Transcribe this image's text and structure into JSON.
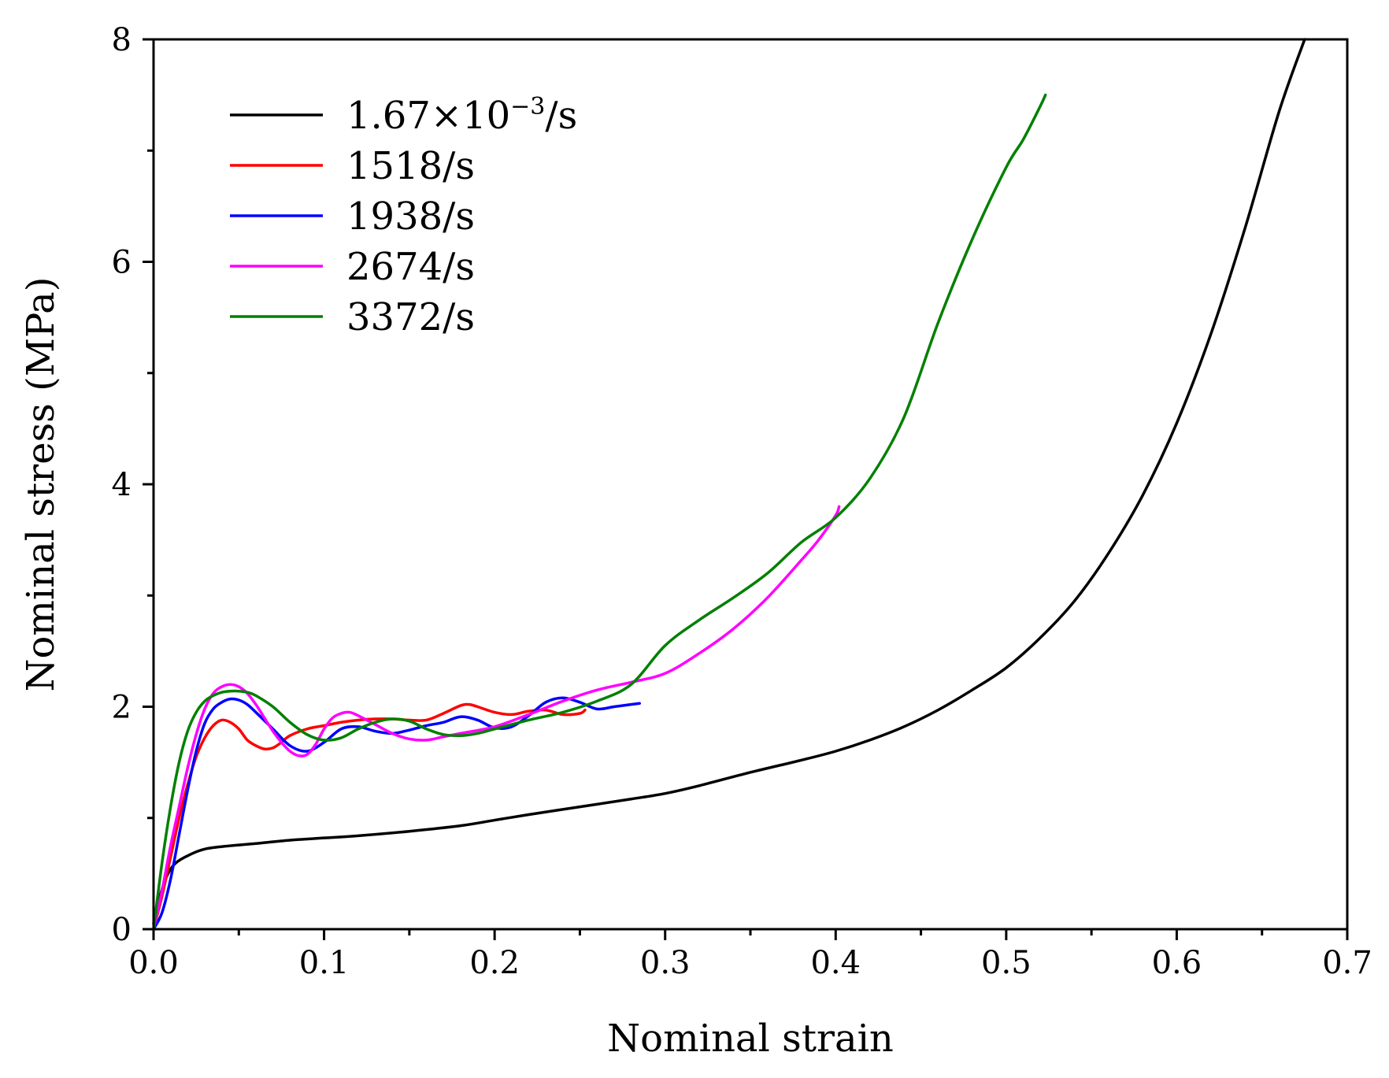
{
  "chart_data": {
    "type": "line",
    "title": "",
    "xlabel": "Nominal strain",
    "ylabel": "Nominal stress (MPa)",
    "xlim": [
      0.0,
      0.7
    ],
    "ylim": [
      0,
      8
    ],
    "grid": false,
    "legend_position": "top-left",
    "x_ticks": [
      0.0,
      0.1,
      0.2,
      0.3,
      0.4,
      0.5,
      0.6,
      0.7
    ],
    "x_tick_labels": [
      "0.0",
      "0.1",
      "0.2",
      "0.3",
      "0.4",
      "0.5",
      "0.6",
      "0.7"
    ],
    "y_ticks": [
      0,
      2,
      4,
      6,
      8
    ],
    "y_tick_labels": [
      "0",
      "2",
      "4",
      "6",
      "8"
    ],
    "series": [
      {
        "name": "1.67×10⁻³/s",
        "legend_base": "1.67×10",
        "legend_sup": "−3",
        "legend_tail": "/s",
        "color": "#000000",
        "x": [
          0.0,
          0.003,
          0.007,
          0.012,
          0.02,
          0.03,
          0.045,
          0.06,
          0.08,
          0.1,
          0.12,
          0.15,
          0.18,
          0.2,
          0.22,
          0.25,
          0.28,
          0.3,
          0.32,
          0.35,
          0.38,
          0.4,
          0.42,
          0.44,
          0.46,
          0.48,
          0.5,
          0.52,
          0.54,
          0.56,
          0.58,
          0.6,
          0.62,
          0.64,
          0.66,
          0.675
        ],
        "y": [
          0.05,
          0.25,
          0.45,
          0.58,
          0.66,
          0.72,
          0.75,
          0.77,
          0.8,
          0.82,
          0.84,
          0.88,
          0.93,
          0.98,
          1.03,
          1.1,
          1.17,
          1.22,
          1.29,
          1.41,
          1.52,
          1.6,
          1.7,
          1.82,
          1.97,
          2.15,
          2.35,
          2.62,
          2.95,
          3.38,
          3.9,
          4.55,
          5.35,
          6.3,
          7.35,
          8.0
        ]
      },
      {
        "name": "1518/s",
        "color": "#ff0000",
        "x": [
          0.0,
          0.005,
          0.01,
          0.015,
          0.02,
          0.025,
          0.03,
          0.035,
          0.04,
          0.045,
          0.05,
          0.055,
          0.06,
          0.065,
          0.07,
          0.075,
          0.08,
          0.09,
          0.1,
          0.11,
          0.12,
          0.13,
          0.14,
          0.15,
          0.16,
          0.17,
          0.18,
          0.185,
          0.19,
          0.2,
          0.21,
          0.22,
          0.23,
          0.24,
          0.25,
          0.253
        ],
        "y": [
          0.0,
          0.3,
          0.65,
          1.0,
          1.3,
          1.55,
          1.72,
          1.83,
          1.88,
          1.86,
          1.8,
          1.7,
          1.65,
          1.62,
          1.63,
          1.68,
          1.74,
          1.8,
          1.83,
          1.86,
          1.88,
          1.89,
          1.89,
          1.88,
          1.88,
          1.94,
          2.01,
          2.02,
          2.0,
          1.95,
          1.93,
          1.96,
          1.97,
          1.93,
          1.94,
          1.97
        ]
      },
      {
        "name": "1938/s",
        "color": "#0000ff",
        "x": [
          0.0,
          0.005,
          0.01,
          0.015,
          0.02,
          0.025,
          0.03,
          0.035,
          0.04,
          0.045,
          0.05,
          0.055,
          0.06,
          0.07,
          0.08,
          0.09,
          0.1,
          0.11,
          0.12,
          0.13,
          0.14,
          0.15,
          0.16,
          0.17,
          0.18,
          0.19,
          0.2,
          0.21,
          0.22,
          0.23,
          0.24,
          0.25,
          0.26,
          0.27,
          0.28,
          0.285
        ],
        "y": [
          0.0,
          0.15,
          0.45,
          0.85,
          1.25,
          1.6,
          1.85,
          1.98,
          2.04,
          2.07,
          2.06,
          2.02,
          1.95,
          1.8,
          1.65,
          1.6,
          1.68,
          1.8,
          1.82,
          1.78,
          1.76,
          1.79,
          1.83,
          1.86,
          1.91,
          1.88,
          1.81,
          1.82,
          1.92,
          2.04,
          2.08,
          2.04,
          1.98,
          2.0,
          2.02,
          2.03
        ]
      },
      {
        "name": "2674/s",
        "color": "#ff00ff",
        "x": [
          0.0,
          0.005,
          0.01,
          0.015,
          0.02,
          0.025,
          0.03,
          0.035,
          0.04,
          0.045,
          0.05,
          0.055,
          0.06,
          0.065,
          0.07,
          0.075,
          0.08,
          0.085,
          0.09,
          0.095,
          0.1,
          0.105,
          0.11,
          0.115,
          0.12,
          0.13,
          0.14,
          0.15,
          0.16,
          0.17,
          0.18,
          0.2,
          0.22,
          0.24,
          0.26,
          0.28,
          0.3,
          0.32,
          0.34,
          0.36,
          0.38,
          0.39,
          0.4,
          0.402
        ],
        "y": [
          0.0,
          0.35,
          0.75,
          1.1,
          1.45,
          1.75,
          1.98,
          2.12,
          2.18,
          2.2,
          2.18,
          2.12,
          2.02,
          1.9,
          1.78,
          1.68,
          1.6,
          1.56,
          1.57,
          1.66,
          1.8,
          1.9,
          1.94,
          1.95,
          1.92,
          1.84,
          1.76,
          1.71,
          1.7,
          1.73,
          1.76,
          1.82,
          1.93,
          2.05,
          2.15,
          2.22,
          2.3,
          2.48,
          2.7,
          2.98,
          3.32,
          3.5,
          3.72,
          3.8
        ]
      },
      {
        "name": "3372/s",
        "color": "#008000",
        "x": [
          0.0,
          0.005,
          0.01,
          0.015,
          0.02,
          0.025,
          0.03,
          0.035,
          0.04,
          0.045,
          0.05,
          0.055,
          0.06,
          0.07,
          0.08,
          0.09,
          0.1,
          0.11,
          0.12,
          0.13,
          0.14,
          0.15,
          0.16,
          0.17,
          0.18,
          0.19,
          0.2,
          0.22,
          0.24,
          0.26,
          0.28,
          0.3,
          0.32,
          0.34,
          0.36,
          0.38,
          0.4,
          0.42,
          0.44,
          0.46,
          0.48,
          0.5,
          0.51,
          0.52,
          0.523
        ],
        "y": [
          0.0,
          0.6,
          1.1,
          1.5,
          1.78,
          1.95,
          2.05,
          2.1,
          2.13,
          2.14,
          2.14,
          2.13,
          2.1,
          2.0,
          1.86,
          1.75,
          1.7,
          1.72,
          1.8,
          1.86,
          1.89,
          1.87,
          1.8,
          1.75,
          1.74,
          1.76,
          1.8,
          1.88,
          1.95,
          2.05,
          2.2,
          2.55,
          2.78,
          2.98,
          3.2,
          3.48,
          3.7,
          4.05,
          4.6,
          5.45,
          6.2,
          6.85,
          7.1,
          7.4,
          7.5
        ]
      }
    ]
  }
}
